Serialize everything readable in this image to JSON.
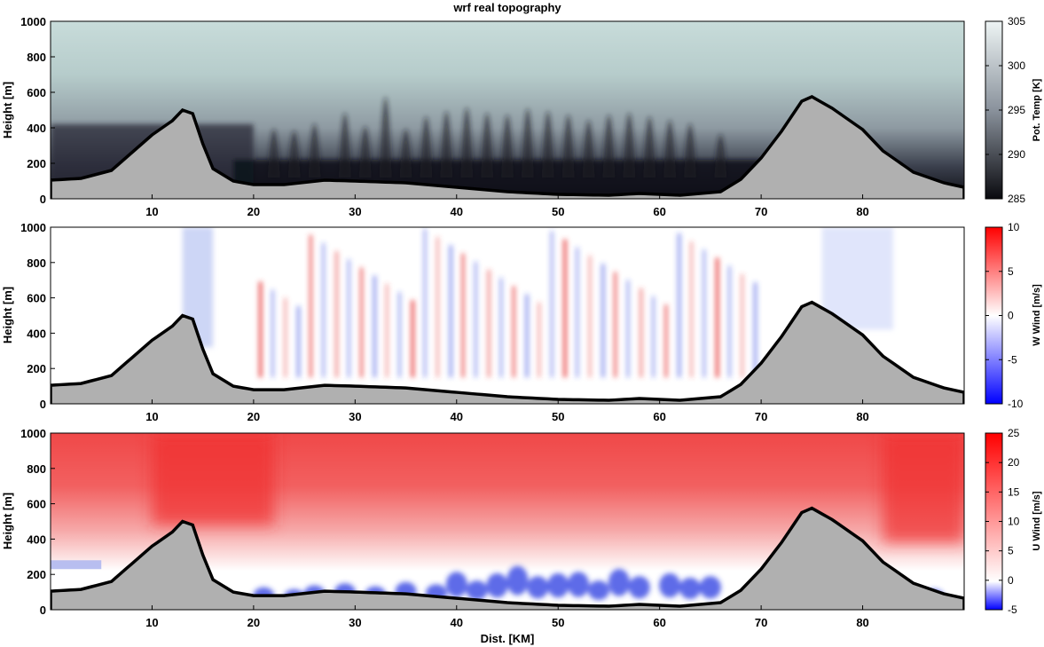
{
  "chart_data": [
    {
      "type": "heatmap",
      "title": "wrf real topography",
      "ylabel": "Height [m]",
      "xlabel": "",
      "xlim": [
        0,
        90
      ],
      "ylim": [
        0,
        1000
      ],
      "xticks": [
        10,
        20,
        30,
        40,
        50,
        60,
        70,
        80
      ],
      "yticks": [
        0,
        200,
        400,
        600,
        800,
        1000
      ],
      "colorbar": {
        "label": "Pot. Temp [K]",
        "range": [
          285,
          305
        ],
        "ticks": [
          285,
          290,
          295,
          300,
          305
        ],
        "colors": [
          "#0a0a0f",
          "#8a929c",
          "#eef4f4"
        ]
      }
    },
    {
      "type": "heatmap",
      "title": "",
      "ylabel": "Height [m]",
      "xlabel": "",
      "xlim": [
        0,
        90
      ],
      "ylim": [
        0,
        1000
      ],
      "xticks": [
        10,
        20,
        30,
        40,
        50,
        60,
        70,
        80
      ],
      "yticks": [
        0,
        200,
        400,
        600,
        800,
        1000
      ],
      "colorbar": {
        "label": "W Wind [m/s]",
        "range": [
          -10,
          10
        ],
        "ticks": [
          -10,
          -5,
          0,
          5,
          10
        ],
        "colors": [
          "#0000ff",
          "#ffffff",
          "#ff0000"
        ]
      }
    },
    {
      "type": "heatmap",
      "title": "",
      "ylabel": "Height [m]",
      "xlabel": "Dist. [KM]",
      "xlim": [
        0,
        90
      ],
      "ylim": [
        0,
        1000
      ],
      "xticks": [
        10,
        20,
        30,
        40,
        50,
        60,
        70,
        80
      ],
      "yticks": [
        0,
        200,
        400,
        600,
        800,
        1000
      ],
      "colorbar": {
        "label": "U Wind [m/s]",
        "range": [
          -5,
          25
        ],
        "ticks": [
          -5,
          0,
          5,
          10,
          15,
          20,
          25
        ],
        "colors": [
          "#0000ff",
          "#ffffff",
          "#ff0000"
        ]
      }
    }
  ],
  "topography": {
    "x": [
      0,
      3,
      6,
      8,
      10,
      12,
      13,
      14,
      15,
      16,
      18,
      20,
      23,
      27,
      30,
      35,
      40,
      45,
      50,
      55,
      58,
      62,
      66,
      68,
      70,
      72,
      74,
      75,
      77,
      80,
      82,
      85,
      88,
      90
    ],
    "y": [
      105,
      115,
      160,
      260,
      360,
      440,
      500,
      480,
      310,
      170,
      100,
      80,
      80,
      105,
      100,
      90,
      65,
      40,
      25,
      20,
      30,
      20,
      40,
      110,
      230,
      380,
      550,
      575,
      510,
      390,
      270,
      150,
      90,
      65
    ]
  }
}
